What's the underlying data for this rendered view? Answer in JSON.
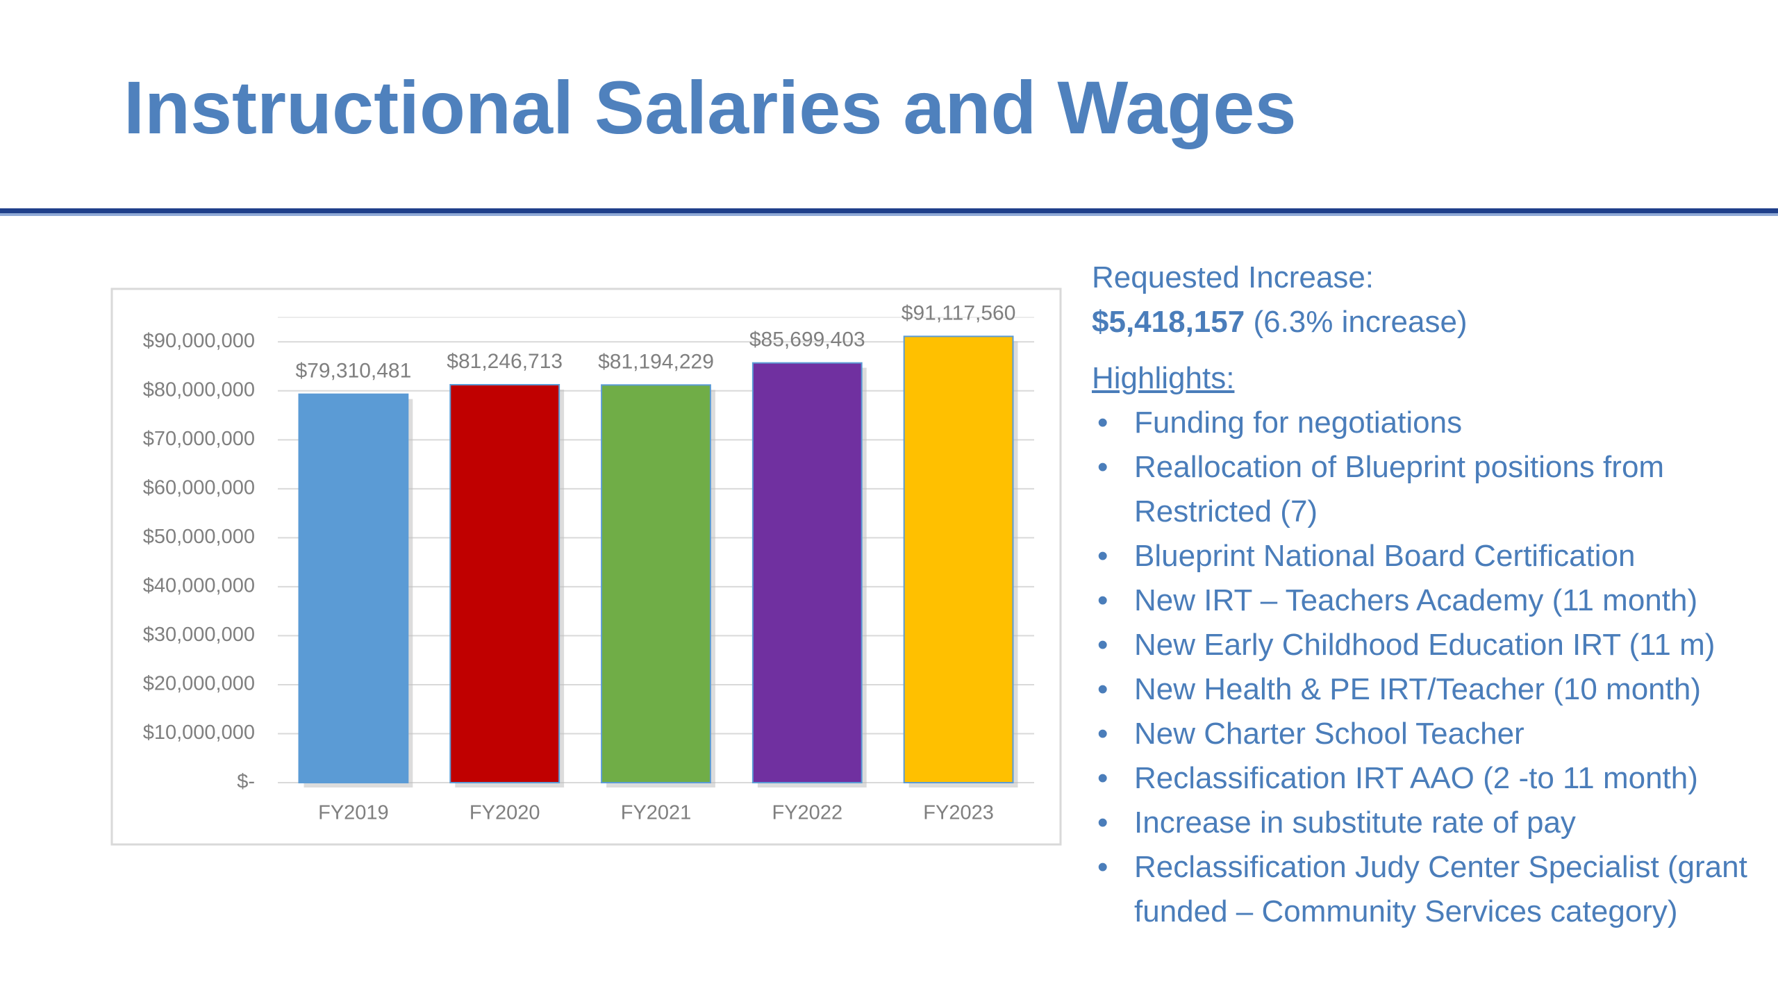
{
  "title": "Instructional Salaries and Wages",
  "chart_data": {
    "type": "bar",
    "categories": [
      "FY2019",
      "FY2020",
      "FY2021",
      "FY2022",
      "FY2023"
    ],
    "values": [
      79310481,
      81246713,
      81194229,
      85699403,
      91117560
    ],
    "value_labels": [
      "$79,310,481",
      "$81,246,713",
      "$81,194,229",
      "$85,699,403",
      "$91,117,560"
    ],
    "colors": [
      "#5b9bd5",
      "#c00000",
      "#70ad47",
      "#7030a0",
      "#ffc000"
    ],
    "ylim": [
      0,
      95000000
    ],
    "yticks": [
      {
        "value": 0,
        "label": "$-"
      },
      {
        "value": 10000000,
        "label": "$10,000,000"
      },
      {
        "value": 20000000,
        "label": "$20,000,000"
      },
      {
        "value": 30000000,
        "label": "$30,000,000"
      },
      {
        "value": 40000000,
        "label": "$40,000,000"
      },
      {
        "value": 50000000,
        "label": "$50,000,000"
      },
      {
        "value": 60000000,
        "label": "$60,000,000"
      },
      {
        "value": 70000000,
        "label": "$70,000,000"
      },
      {
        "value": 80000000,
        "label": "$80,000,000"
      },
      {
        "value": 90000000,
        "label": "$90,000,000"
      }
    ],
    "grid": true
  },
  "panel": {
    "requested_label": "Requested Increase:",
    "amount": "$5,418,157",
    "amount_note": "(6.3% increase)",
    "highlights_label": "Highlights:",
    "items": [
      "Funding for negotiations",
      "Reallocation of Blueprint positions from Restricted (7)",
      "Blueprint National Board Certification",
      "New IRT – Teachers Academy (11 month)",
      "New Early Childhood Education IRT (11 m)",
      "New Health & PE IRT/Teacher (10 month)",
      "New Charter School Teacher",
      "Reclassification IRT AAO (2 -to 11 month)",
      "Increase in substitute rate of pay",
      "Reclassification Judy Center Specialist (grant funded – Community Services category)"
    ]
  }
}
